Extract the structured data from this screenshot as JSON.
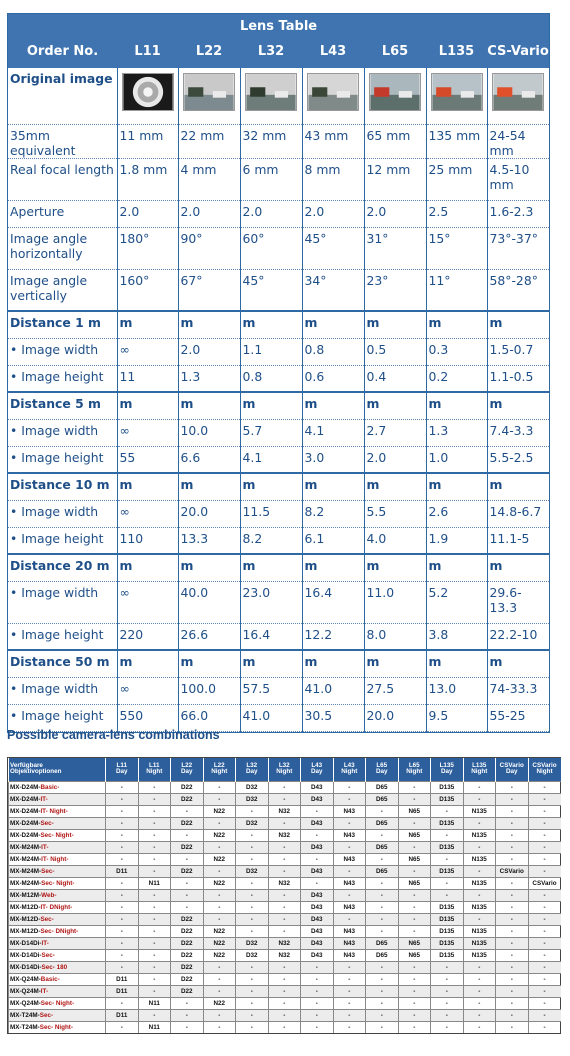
{
  "lens_table": {
    "title": "Lens Table",
    "headers": [
      "Order No.",
      "L11",
      "L22",
      "L32",
      "L43",
      "L65",
      "L135",
      "CS-Vario"
    ],
    "image_row_label": "Original image",
    "image_icons": [
      "fisheye-lens-image",
      "street-scene-image",
      "street-scene-image",
      "street-scene-image",
      "parked-cars-image",
      "red-car-image",
      "red-car-image"
    ],
    "rows": [
      {
        "type": "data",
        "label": "35mm equivalent",
        "values": [
          "11 mm",
          "22 mm",
          "32 mm",
          "43 mm",
          "65 mm",
          "135 mm",
          "24-54 mm"
        ]
      },
      {
        "type": "data",
        "label": "Real focal length",
        "values": [
          "1.8 mm",
          "4 mm",
          "6 mm",
          "8 mm",
          "12 mm",
          "25 mm",
          "4.5-10 mm"
        ]
      },
      {
        "type": "data",
        "label": "Aperture",
        "values": [
          "2.0",
          "2.0",
          "2.0",
          "2.0",
          "2.0",
          "2.5",
          "1.6-2.3"
        ]
      },
      {
        "type": "data",
        "label": "Image angle horizontally",
        "values": [
          "180°",
          "90°",
          "60°",
          "45°",
          "31°",
          "15°",
          "73°-37°"
        ]
      },
      {
        "type": "data",
        "label": "Image angle vertically",
        "values": [
          "160°",
          "67°",
          "45°",
          "34°",
          "23°",
          "11°",
          "58°-28°"
        ]
      },
      {
        "type": "section",
        "label": "Distance 1 m",
        "values": [
          "m",
          "m",
          "m",
          "m",
          "m",
          "m",
          "m"
        ]
      },
      {
        "type": "bullet",
        "label": "Image width",
        "values": [
          "∞",
          "2.0",
          "1.1",
          "0.8",
          "0.5",
          "0.3",
          "1.5-0.7"
        ]
      },
      {
        "type": "bullet",
        "label": "Image height",
        "values": [
          "11",
          "1.3",
          "0.8",
          "0.6",
          "0.4",
          "0.2",
          "1.1-0.5"
        ]
      },
      {
        "type": "section",
        "label": "Distance 5 m",
        "values": [
          "m",
          "m",
          "m",
          "m",
          "m",
          "m",
          "m"
        ]
      },
      {
        "type": "bullet",
        "label": "Image width",
        "values": [
          "∞",
          "10.0",
          "5.7",
          "4.1",
          "2.7",
          "1.3",
          "7.4-3.3"
        ]
      },
      {
        "type": "bullet",
        "label": "Image height",
        "values": [
          "55",
          "6.6",
          "4.1",
          "3.0",
          "2.0",
          "1.0",
          "5.5-2.5"
        ]
      },
      {
        "type": "section",
        "label": "Distance 10 m",
        "values": [
          "m",
          "m",
          "m",
          "m",
          "m",
          "m",
          "m"
        ]
      },
      {
        "type": "bullet",
        "label": "Image width",
        "values": [
          "∞",
          "20.0",
          "11.5",
          "8.2",
          "5.5",
          "2.6",
          "14.8-6.7"
        ]
      },
      {
        "type": "bullet",
        "label": "Image height",
        "values": [
          "110",
          "13.3",
          "8.2",
          "6.1",
          "4.0",
          "1.9",
          "11.1-5"
        ]
      },
      {
        "type": "section",
        "label": "Distance 20 m",
        "values": [
          "m",
          "m",
          "m",
          "m",
          "m",
          "m",
          "m"
        ]
      },
      {
        "type": "bullet",
        "label": "Image width",
        "values": [
          "∞",
          "40.0",
          "23.0",
          "16.4",
          "11.0",
          "5.2",
          "29.6-13.3"
        ]
      },
      {
        "type": "bullet",
        "label": "Image height",
        "values": [
          "220",
          "26.6",
          "16.4",
          "12.2",
          "8.0",
          "3.8",
          "22.2-10"
        ]
      },
      {
        "type": "section",
        "label": "Distance 50 m",
        "values": [
          "m",
          "m",
          "m",
          "m",
          "m",
          "m",
          "m"
        ]
      },
      {
        "type": "bullet",
        "label": "Image width",
        "values": [
          "∞",
          "100.0",
          "57.5",
          "41.0",
          "27.5",
          "13.0",
          "74-33.3"
        ]
      },
      {
        "type": "bullet",
        "label": "Image height",
        "values": [
          "550",
          "66.0",
          "41.0",
          "30.5",
          "20.0",
          "9.5",
          "55-25"
        ]
      }
    ]
  },
  "combo": {
    "title": "Possible camera-lens combinations",
    "header_first": [
      "Verfügbare",
      "Objektivoptionen"
    ],
    "headers": [
      [
        "L11",
        "Day"
      ],
      [
        "L11",
        "Night"
      ],
      [
        "L22",
        "Day"
      ],
      [
        "L22",
        "Night"
      ],
      [
        "L32",
        "Day"
      ],
      [
        "L32",
        "Night"
      ],
      [
        "L43",
        "Day"
      ],
      [
        "L43",
        "Night"
      ],
      [
        "L65",
        "Day"
      ],
      [
        "L65",
        "Night"
      ],
      [
        "L135",
        "Day"
      ],
      [
        "L135",
        "Night"
      ],
      [
        "CSVario",
        "Day"
      ],
      [
        "CSVario",
        "Night"
      ]
    ],
    "rows": [
      {
        "model": "MX-D24M-",
        "variant": "Basic-",
        "suffix": "",
        "cells": [
          "-",
          "-",
          "D22",
          "-",
          "D32",
          "-",
          "D43",
          "-",
          "D65",
          "-",
          "D135",
          "-",
          "-",
          "-"
        ]
      },
      {
        "model": "MX-D24M-",
        "variant": "IT-",
        "suffix": "",
        "cells": [
          "-",
          "-",
          "D22",
          "-",
          "D32",
          "-",
          "D43",
          "-",
          "D65",
          "-",
          "D135",
          "-",
          "-",
          "-"
        ]
      },
      {
        "model": "MX-D24M-",
        "variant": "IT-",
        "suffix": "Night-",
        "cells": [
          "-",
          "-",
          "-",
          "N22",
          "-",
          "N32",
          "-",
          "N43",
          "-",
          "N65",
          "-",
          "N135",
          "-",
          "-"
        ]
      },
      {
        "model": "MX-D24M-",
        "variant": "Sec-",
        "suffix": "",
        "cells": [
          "-",
          "-",
          "D22",
          "-",
          "D32",
          "-",
          "D43",
          "-",
          "D65",
          "-",
          "D135",
          "-",
          "-",
          "-"
        ]
      },
      {
        "model": "MX-D24M-",
        "variant": "Sec-",
        "suffix": "Night-",
        "cells": [
          "-",
          "-",
          "-",
          "N22",
          "-",
          "N32",
          "-",
          "N43",
          "-",
          "N65",
          "-",
          "N135",
          "-",
          "-"
        ]
      },
      {
        "model": "MX-M24M-",
        "variant": "IT-",
        "suffix": "",
        "cells": [
          "-",
          "-",
          "D22",
          "-",
          "-",
          "-",
          "D43",
          "-",
          "D65",
          "-",
          "D135",
          "-",
          "-",
          "-"
        ]
      },
      {
        "model": "MX-M24M-",
        "variant": "IT-",
        "suffix": "Night-",
        "cells": [
          "-",
          "-",
          "-",
          "N22",
          "-",
          "-",
          "-",
          "N43",
          "-",
          "N65",
          "-",
          "N135",
          "-",
          "-"
        ]
      },
      {
        "model": "MX-M24M-",
        "variant": "Sec-",
        "suffix": "",
        "cells": [
          "D11",
          "-",
          "D22",
          "-",
          "D32",
          "-",
          "D43",
          "-",
          "D65",
          "-",
          "D135",
          "-",
          "CSVario",
          "-"
        ]
      },
      {
        "model": "MX-M24M-",
        "variant": "Sec-",
        "suffix": "Night-",
        "cells": [
          "-",
          "N11",
          "-",
          "N22",
          "-",
          "N32",
          "-",
          "N43",
          "-",
          "N65",
          "-",
          "N135",
          "-",
          "CSVario"
        ]
      },
      {
        "model": "MX-M12M-",
        "variant": "Web-",
        "suffix": "",
        "cells": [
          "-",
          "-",
          "-",
          "-",
          "-",
          "-",
          "D43",
          "-",
          "-",
          "-",
          "-",
          "-",
          "-",
          "-"
        ]
      },
      {
        "model": "MX-M12D-",
        "variant": "IT-",
        "suffix": "DNight-",
        "cells": [
          "-",
          "-",
          "-",
          "-",
          "-",
          "-",
          "D43",
          "N43",
          "-",
          "-",
          "D135",
          "N135",
          "-",
          "-"
        ]
      },
      {
        "model": "MX-M12D-",
        "variant": "Sec-",
        "suffix": "",
        "cells": [
          "-",
          "-",
          "D22",
          "-",
          "-",
          "-",
          "D43",
          "-",
          "-",
          "-",
          "D135",
          "-",
          "-",
          "-"
        ]
      },
      {
        "model": "MX-M12D-",
        "variant": "Sec-",
        "suffix": "DNight-",
        "cells": [
          "-",
          "-",
          "D22",
          "N22",
          "-",
          "-",
          "D43",
          "N43",
          "-",
          "-",
          "D135",
          "N135",
          "-",
          "-"
        ]
      },
      {
        "model": "MX-D14Di-",
        "variant": "IT-",
        "suffix": "",
        "cells": [
          "-",
          "-",
          "D22",
          "N22",
          "D32",
          "N32",
          "D43",
          "N43",
          "D65",
          "N65",
          "D135",
          "N135",
          "-",
          "-"
        ]
      },
      {
        "model": "MX-D14Di-",
        "variant": "Sec-",
        "suffix": "",
        "cells": [
          "-",
          "-",
          "D22",
          "N22",
          "D32",
          "N32",
          "D43",
          "N43",
          "D65",
          "N65",
          "D135",
          "N135",
          "-",
          "-"
        ]
      },
      {
        "model": "MX-D14Di-",
        "variant": "Sec-",
        "suffix": "180",
        "cells": [
          "-",
          "-",
          "D22",
          "-",
          "-",
          "-",
          "-",
          "-",
          "-",
          "-",
          "-",
          "-",
          "-",
          "-"
        ]
      },
      {
        "model": "MX-Q24M-",
        "variant": "Basic-",
        "suffix": "",
        "cells": [
          "D11",
          "-",
          "D22",
          "-",
          "-",
          "-",
          "-",
          "-",
          "-",
          "-",
          "-",
          "-",
          "-",
          "-"
        ]
      },
      {
        "model": "MX-Q24M-",
        "variant": "IT-",
        "suffix": "",
        "cells": [
          "D11",
          "-",
          "D22",
          "-",
          "-",
          "-",
          "-",
          "-",
          "-",
          "-",
          "-",
          "-",
          "-",
          "-"
        ]
      },
      {
        "model": "MX-Q24M-",
        "variant": "Sec-",
        "suffix": "Night-",
        "cells": [
          "-",
          "N11",
          "-",
          "N22",
          "-",
          "-",
          "-",
          "-",
          "-",
          "-",
          "-",
          "-",
          "-",
          "-"
        ]
      },
      {
        "model": "MX-T24M-",
        "variant": "Sec-",
        "suffix": "",
        "cells": [
          "D11",
          "-",
          "-",
          "-",
          "-",
          "-",
          "-",
          "-",
          "-",
          "-",
          "-",
          "-",
          "-",
          "-"
        ]
      },
      {
        "model": "MX-T24M-",
        "variant": "Sec-",
        "suffix": "Night-",
        "cells": [
          "-",
          "N11",
          "-",
          "-",
          "-",
          "-",
          "-",
          "-",
          "-",
          "-",
          "-",
          "-",
          "-",
          "-"
        ]
      }
    ]
  },
  "colors": {
    "header_blue": "#3f74b0",
    "text_blue": "#1f4f88",
    "variant_red": "#b01414"
  }
}
